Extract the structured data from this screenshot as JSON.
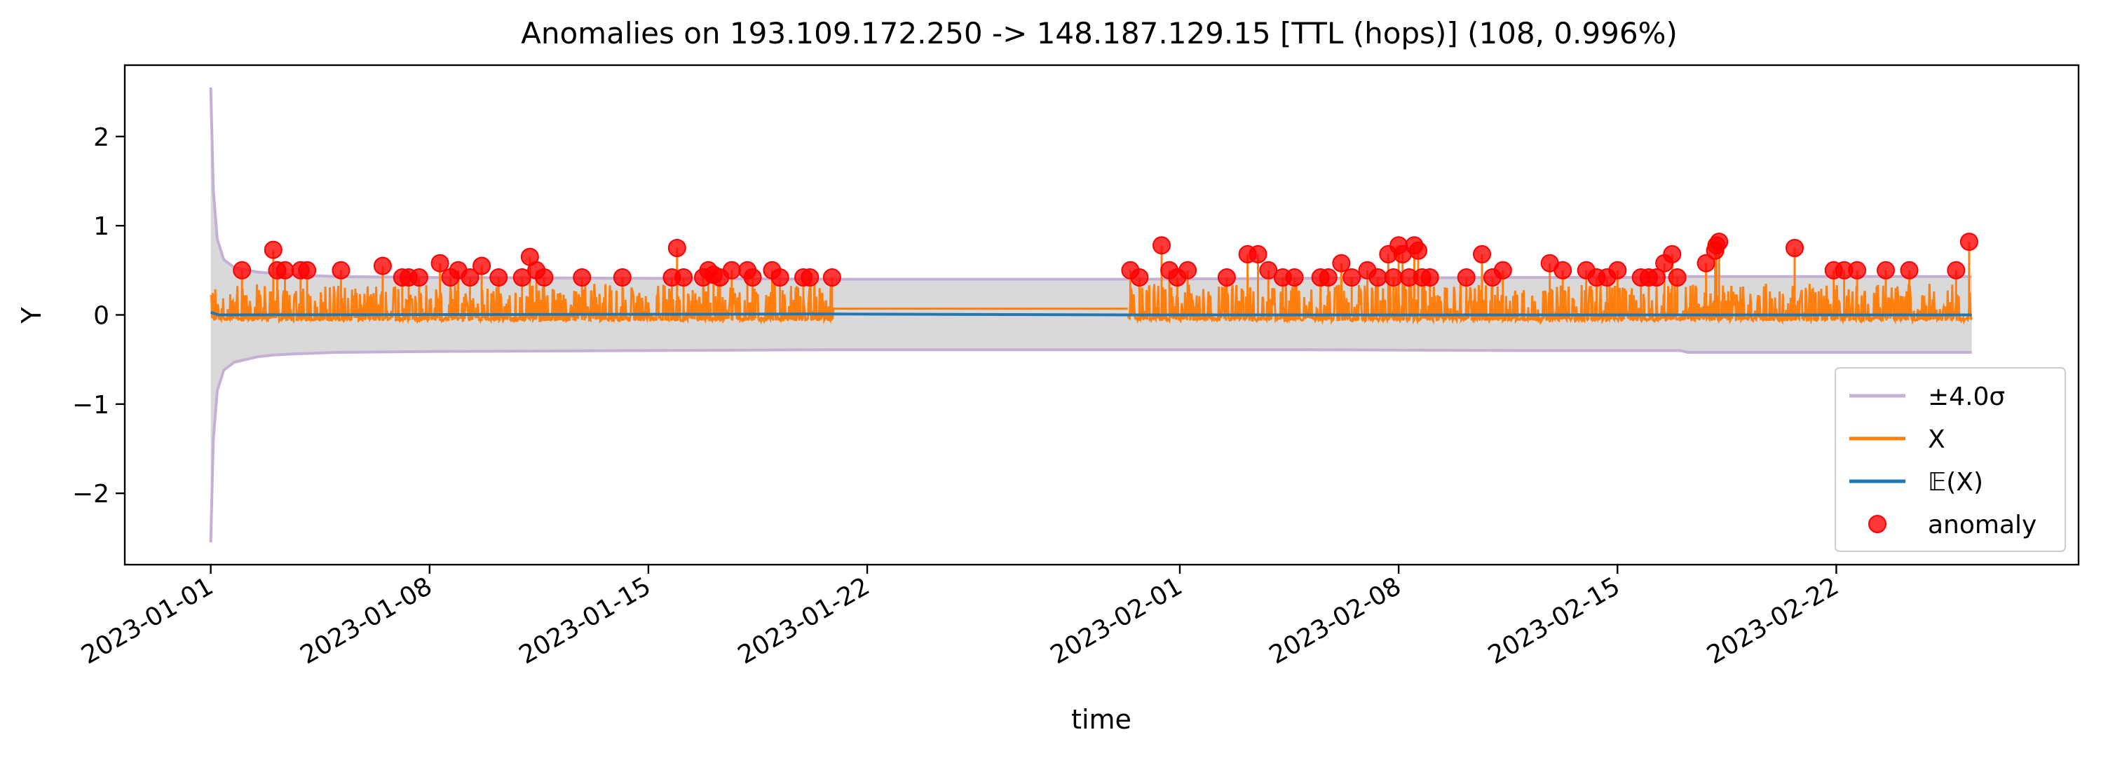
{
  "chart_data": {
    "type": "line",
    "title": "Anomalies on 193.109.172.250 -> 148.187.129.15 [TTL (hops)] (108, 0.996%)",
    "xlabel": "time",
    "ylabel": "Y",
    "x_ticks": [
      "2023-01-01",
      "2023-01-08",
      "2023-01-15",
      "2023-01-22",
      "2023-02-01",
      "2023-02-08",
      "2023-02-15",
      "2023-02-22"
    ],
    "y_ticks": [
      2,
      1,
      0,
      -1,
      -2
    ],
    "y_tick_labels": [
      "2",
      "1",
      "0",
      "−1",
      "−2"
    ],
    "xlim": [
      "2022-12-29T06:00",
      "2023-03-01T18:00"
    ],
    "ylim": [
      -2.8,
      2.8
    ],
    "grid": false,
    "legend": {
      "position": "lower-right",
      "entries": [
        {
          "label": "±4.0σ",
          "kind": "line",
          "color": "#c5b0d5"
        },
        {
          "label": "X",
          "kind": "line",
          "color": "#ff7f0e"
        },
        {
          "label": "𝔼(X)",
          "kind": "line",
          "color": "#1f77b4"
        },
        {
          "label": "anomaly",
          "kind": "marker",
          "color": "#ff0000"
        }
      ]
    },
    "colors": {
      "band_fill": "#d9d9d9",
      "sigma_line": "#c5b0d5",
      "x_line": "#ff7f0e",
      "mean_line": "#1f77b4",
      "anomaly": "#ff0000"
    },
    "series": [
      {
        "name": "±4.0σ",
        "role": "upper",
        "points": [
          [
            "2023-01-01T00:00",
            2.55
          ],
          [
            "2023-01-01T02:00",
            1.4
          ],
          [
            "2023-01-01T05:00",
            0.85
          ],
          [
            "2023-01-01T10:00",
            0.62
          ],
          [
            "2023-01-01T18:00",
            0.53
          ],
          [
            "2023-01-02T12:00",
            0.48
          ],
          [
            "2023-01-03T12:00",
            0.45
          ],
          [
            "2023-01-05T00:00",
            0.43
          ],
          [
            "2023-01-08T00:00",
            0.42
          ],
          [
            "2023-01-15T00:00",
            0.41
          ],
          [
            "2023-01-20T22:00",
            0.4
          ],
          [
            "2023-01-30T08:00",
            0.4
          ],
          [
            "2023-02-05T00:00",
            0.41
          ],
          [
            "2023-02-12T00:00",
            0.42
          ],
          [
            "2023-02-17T00:00",
            0.42
          ],
          [
            "2023-02-17T06:00",
            0.43
          ],
          [
            "2023-02-26T08:00",
            0.43
          ]
        ]
      },
      {
        "name": "±4.0σ",
        "role": "lower",
        "points": [
          [
            "2023-01-01T00:00",
            -2.55
          ],
          [
            "2023-01-01T02:00",
            -1.4
          ],
          [
            "2023-01-01T05:00",
            -0.85
          ],
          [
            "2023-01-01T10:00",
            -0.62
          ],
          [
            "2023-01-01T18:00",
            -0.53
          ],
          [
            "2023-01-02T12:00",
            -0.47
          ],
          [
            "2023-01-03T00:00",
            -0.45
          ],
          [
            "2023-01-03T12:00",
            -0.44
          ],
          [
            "2023-01-05T00:00",
            -0.42
          ],
          [
            "2023-01-08T00:00",
            -0.41
          ],
          [
            "2023-01-15T00:00",
            -0.4
          ],
          [
            "2023-01-20T22:00",
            -0.39
          ],
          [
            "2023-01-30T08:00",
            -0.39
          ],
          [
            "2023-02-05T00:00",
            -0.39
          ],
          [
            "2023-02-12T00:00",
            -0.4
          ],
          [
            "2023-02-17T00:00",
            -0.4
          ],
          [
            "2023-02-17T06:00",
            -0.42
          ],
          [
            "2023-02-26T08:00",
            -0.42
          ]
        ]
      },
      {
        "name": "X",
        "segments": [
          {
            "start": "2023-01-01T00:00",
            "end": "2023-01-20T22:00",
            "baseline": -0.05,
            "spike_max": 0.35
          },
          {
            "start": "2023-01-20T22:00",
            "end": "2023-01-30T08:00",
            "baseline": 0.07,
            "spike_max": 0.07
          },
          {
            "start": "2023-01-30T08:00",
            "end": "2023-02-26T08:00",
            "baseline": -0.05,
            "spike_max": 0.35
          }
        ]
      },
      {
        "name": "𝔼(X)",
        "points": [
          [
            "2023-01-01T00:00",
            0.03
          ],
          [
            "2023-01-01T06:00",
            0.0
          ],
          [
            "2023-01-20T22:00",
            0.01
          ],
          [
            "2023-01-30T08:00",
            0.0
          ],
          [
            "2023-02-26T08:00",
            0.0
          ]
        ]
      },
      {
        "name": "anomaly",
        "points": [
          [
            "2023-01-02T00:00",
            0.5
          ],
          [
            "2023-01-03T00:00",
            0.73
          ],
          [
            "2023-01-03T03:00",
            0.5
          ],
          [
            "2023-01-03T09:00",
            0.5
          ],
          [
            "2023-01-03T21:00",
            0.5
          ],
          [
            "2023-01-04T02:00",
            0.5
          ],
          [
            "2023-01-05T04:00",
            0.5
          ],
          [
            "2023-01-06T12:00",
            0.55
          ],
          [
            "2023-01-07T03:00",
            0.42
          ],
          [
            "2023-01-07T08:00",
            0.42
          ],
          [
            "2023-01-07T16:00",
            0.42
          ],
          [
            "2023-01-08T08:00",
            0.58
          ],
          [
            "2023-01-08T16:00",
            0.42
          ],
          [
            "2023-01-08T22:00",
            0.5
          ],
          [
            "2023-01-09T07:00",
            0.42
          ],
          [
            "2023-01-09T16:00",
            0.55
          ],
          [
            "2023-01-10T05:00",
            0.42
          ],
          [
            "2023-01-10T23:00",
            0.42
          ],
          [
            "2023-01-11T05:00",
            0.65
          ],
          [
            "2023-01-11T10:00",
            0.5
          ],
          [
            "2023-01-11T16:00",
            0.42
          ],
          [
            "2023-01-12T21:00",
            0.42
          ],
          [
            "2023-01-14T04:00",
            0.42
          ],
          [
            "2023-01-15T18:00",
            0.42
          ],
          [
            "2023-01-15T22:00",
            0.75
          ],
          [
            "2023-01-16T03:00",
            0.42
          ],
          [
            "2023-01-16T18:00",
            0.42
          ],
          [
            "2023-01-16T22:00",
            0.5
          ],
          [
            "2023-01-17T02:00",
            0.45
          ],
          [
            "2023-01-17T07:00",
            0.42
          ],
          [
            "2023-01-17T16:00",
            0.5
          ],
          [
            "2023-01-18T04:00",
            0.5
          ],
          [
            "2023-01-18T08:00",
            0.42
          ],
          [
            "2023-01-18T23:00",
            0.5
          ],
          [
            "2023-01-19T05:00",
            0.42
          ],
          [
            "2023-01-19T23:00",
            0.42
          ],
          [
            "2023-01-20T04:00",
            0.42
          ],
          [
            "2023-01-20T21:00",
            0.42
          ],
          [
            "2023-01-30T10:00",
            0.5
          ],
          [
            "2023-01-30T17:00",
            0.42
          ],
          [
            "2023-01-31T10:00",
            0.78
          ],
          [
            "2023-01-31T16:00",
            0.5
          ],
          [
            "2023-01-31T22:00",
            0.42
          ],
          [
            "2023-02-01T06:00",
            0.5
          ],
          [
            "2023-02-02T12:00",
            0.42
          ],
          [
            "2023-02-03T04:00",
            0.68
          ],
          [
            "2023-02-03T12:00",
            0.68
          ],
          [
            "2023-02-03T20:00",
            0.5
          ],
          [
            "2023-02-04T07:00",
            0.42
          ],
          [
            "2023-02-04T16:00",
            0.42
          ],
          [
            "2023-02-05T12:00",
            0.42
          ],
          [
            "2023-02-05T18:00",
            0.42
          ],
          [
            "2023-02-06T04:00",
            0.58
          ],
          [
            "2023-02-06T12:00",
            0.42
          ],
          [
            "2023-02-07T00:00",
            0.5
          ],
          [
            "2023-02-07T08:00",
            0.42
          ],
          [
            "2023-02-07T16:00",
            0.68
          ],
          [
            "2023-02-07T20:00",
            0.42
          ],
          [
            "2023-02-08T00:00",
            0.78
          ],
          [
            "2023-02-08T03:00",
            0.68
          ],
          [
            "2023-02-08T08:00",
            0.42
          ],
          [
            "2023-02-08T12:00",
            0.78
          ],
          [
            "2023-02-08T15:00",
            0.72
          ],
          [
            "2023-02-08T18:00",
            0.42
          ],
          [
            "2023-02-09T00:00",
            0.42
          ],
          [
            "2023-02-10T04:00",
            0.42
          ],
          [
            "2023-02-10T16:00",
            0.68
          ],
          [
            "2023-02-11T00:00",
            0.42
          ],
          [
            "2023-02-11T08:00",
            0.5
          ],
          [
            "2023-02-12T20:00",
            0.58
          ],
          [
            "2023-02-13T06:00",
            0.5
          ],
          [
            "2023-02-14T00:00",
            0.5
          ],
          [
            "2023-02-14T08:00",
            0.42
          ],
          [
            "2023-02-14T16:00",
            0.42
          ],
          [
            "2023-02-15T00:00",
            0.5
          ],
          [
            "2023-02-15T18:00",
            0.42
          ],
          [
            "2023-02-16T00:00",
            0.42
          ],
          [
            "2023-02-16T06:00",
            0.42
          ],
          [
            "2023-02-16T12:00",
            0.58
          ],
          [
            "2023-02-16T18:00",
            0.68
          ],
          [
            "2023-02-16T22:00",
            0.42
          ],
          [
            "2023-02-17T20:00",
            0.58
          ],
          [
            "2023-02-18T03:00",
            0.72
          ],
          [
            "2023-02-18T04:00",
            0.78
          ],
          [
            "2023-02-18T06:00",
            0.82
          ],
          [
            "2023-02-20T16:00",
            0.75
          ],
          [
            "2023-02-21T22:00",
            0.5
          ],
          [
            "2023-02-22T06:00",
            0.5
          ],
          [
            "2023-02-22T16:00",
            0.5
          ],
          [
            "2023-02-23T14:00",
            0.5
          ],
          [
            "2023-02-24T08:00",
            0.5
          ],
          [
            "2023-02-25T20:00",
            0.5
          ],
          [
            "2023-02-26T06:00",
            0.82
          ]
        ]
      }
    ]
  }
}
